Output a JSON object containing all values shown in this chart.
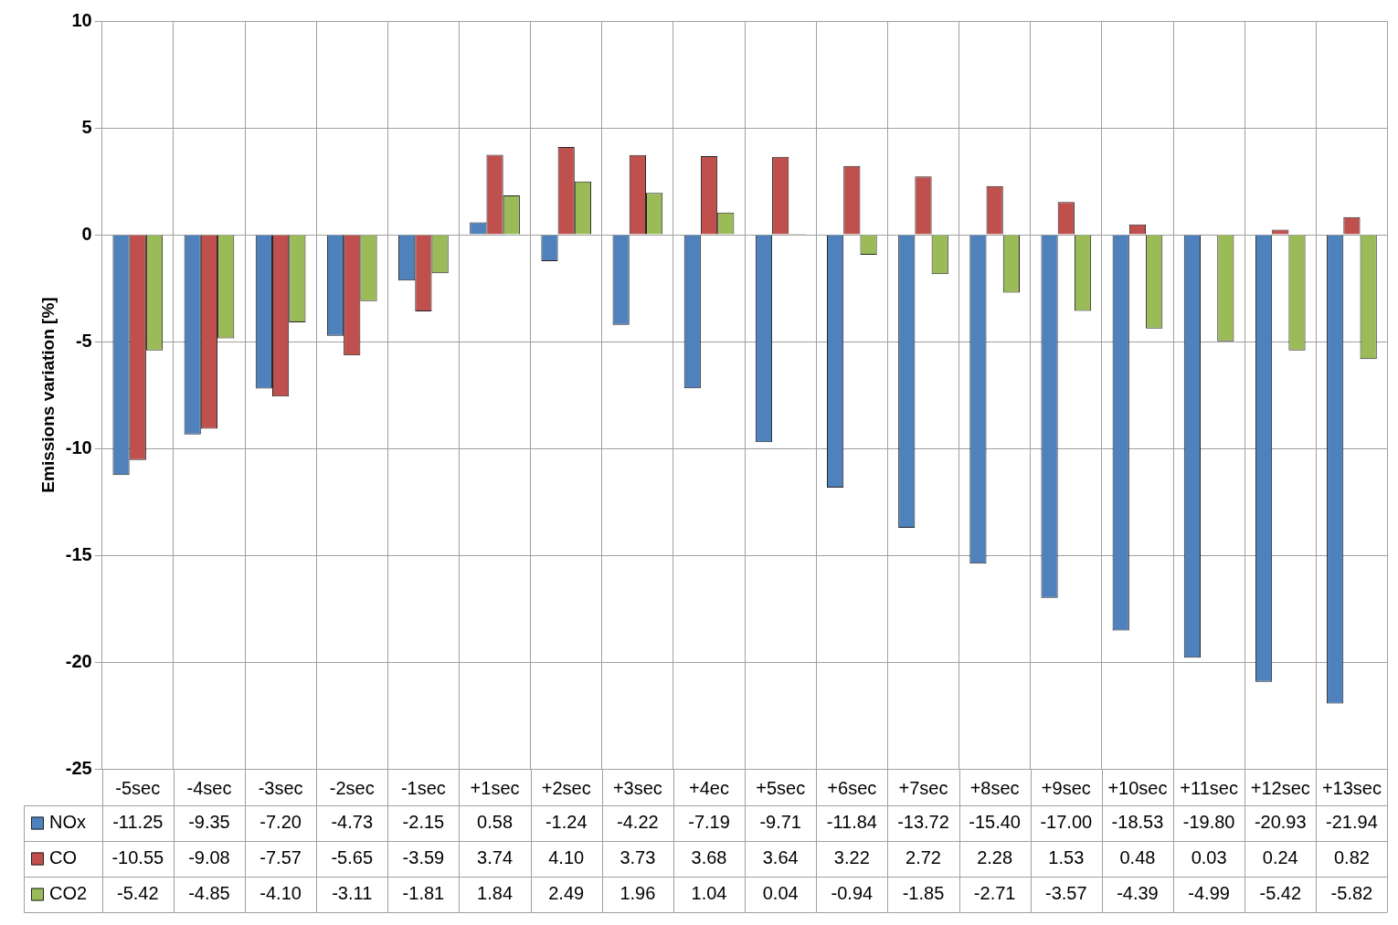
{
  "chart_data": {
    "type": "bar",
    "ylabel": "Emissions variation [%]",
    "categories": [
      "-5sec",
      "-4sec",
      "-3sec",
      "-2sec",
      "-1sec",
      "+1sec",
      "+2sec",
      "+3sec",
      "+4ec",
      "+5sec",
      "+6sec",
      "+7sec",
      "+8sec",
      "+9sec",
      "+10sec",
      "+11sec",
      "+12sec",
      "+13sec"
    ],
    "series": [
      {
        "name": "NOx",
        "color": "#4f81bd",
        "values": [
          -11.25,
          -9.35,
          -7.2,
          -4.73,
          -2.15,
          0.58,
          -1.24,
          -4.22,
          -7.19,
          -9.71,
          -11.84,
          -13.72,
          -15.4,
          -17.0,
          -18.53,
          -19.8,
          -20.93,
          -21.94
        ],
        "value_labels": [
          "-11.25",
          "-9.35",
          "-7.20",
          "-4.73",
          "-2.15",
          "0.58",
          "-1.24",
          "-4.22",
          "-7.19",
          "-9.71",
          "-11.84",
          "-13.72",
          "-15.40",
          "-17.00",
          "-18.53",
          "-19.80",
          "-20.93",
          "-21.94"
        ]
      },
      {
        "name": "CO",
        "color": "#c0504d",
        "values": [
          -10.55,
          -9.08,
          -7.57,
          -5.65,
          -3.59,
          3.74,
          4.1,
          3.73,
          3.68,
          3.64,
          3.22,
          2.72,
          2.28,
          1.53,
          0.48,
          0.03,
          0.24,
          0.82
        ],
        "value_labels": [
          "-10.55",
          "-9.08",
          "-7.57",
          "-5.65",
          "-3.59",
          "3.74",
          "4.10",
          "3.73",
          "3.68",
          "3.64",
          "3.22",
          "2.72",
          "2.28",
          "1.53",
          "0.48",
          "0.03",
          "0.24",
          "0.82"
        ]
      },
      {
        "name": "CO2",
        "color": "#9bbb59",
        "values": [
          -5.42,
          -4.85,
          -4.1,
          -3.11,
          -1.81,
          1.84,
          2.49,
          1.96,
          1.04,
          0.04,
          -0.94,
          -1.85,
          -2.71,
          -3.57,
          -4.39,
          -4.99,
          -5.42,
          -5.82
        ],
        "value_labels": [
          "-5.42",
          "-4.85",
          "-4.10",
          "-3.11",
          "-1.81",
          "1.84",
          "2.49",
          "1.96",
          "1.04",
          "0.04",
          "-0.94",
          "-1.85",
          "-2.71",
          "-3.57",
          "-4.39",
          "-4.99",
          "-5.42",
          "-5.82"
        ]
      }
    ],
    "ylim": [
      -25,
      10
    ],
    "yticks": [
      -25,
      -20,
      -15,
      -10,
      -5,
      0,
      5,
      10
    ],
    "grid": true,
    "legend": "bottom"
  }
}
